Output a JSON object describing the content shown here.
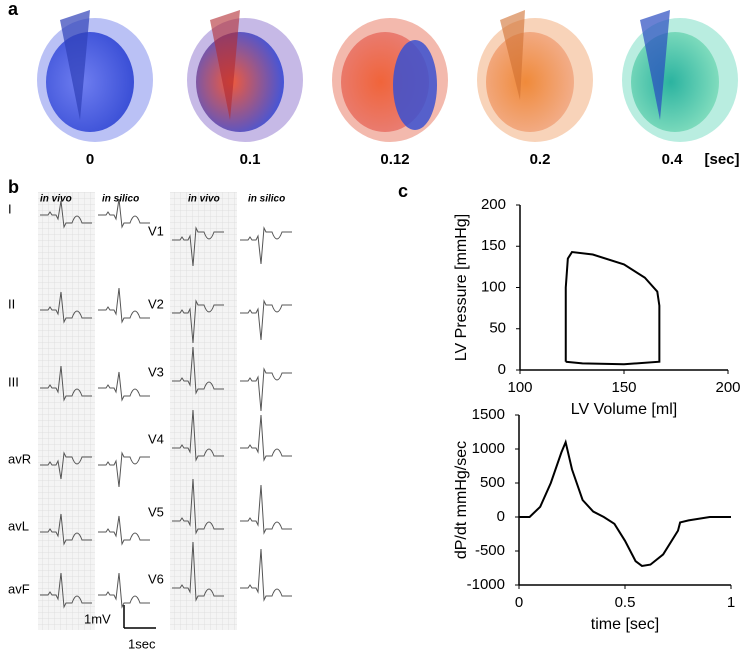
{
  "panel_a": {
    "label": "a",
    "times": [
      "0",
      "0.1",
      "0.12",
      "0.2",
      "0.4"
    ],
    "unit": "[sec]"
  },
  "panel_b": {
    "label": "b",
    "headers": [
      "in vivo",
      "in silico",
      "in vivo",
      "in silico"
    ],
    "limb_leads": [
      "I",
      "II",
      "III",
      "avR",
      "avL",
      "avF"
    ],
    "chest_leads": [
      "V1",
      "V2",
      "V3",
      "V4",
      "V5",
      "V6"
    ],
    "scale_voltage": "1mV",
    "scale_time": "1sec"
  },
  "panel_c": {
    "label": "c"
  },
  "chart_data": [
    {
      "type": "line",
      "xlabel": "LV Volume  [ml]",
      "ylabel": "LV Pressure [mmHg]",
      "color": "#000000",
      "x": [
        122,
        122,
        123,
        125,
        135,
        150,
        160,
        166,
        167,
        167,
        150,
        130,
        122
      ],
      "values": [
        10,
        100,
        135,
        143,
        140,
        128,
        112,
        95,
        78,
        10,
        7,
        8,
        10
      ],
      "xlim": [
        100,
        200
      ],
      "ylim": [
        0,
        200
      ],
      "xticks": [
        100,
        150,
        200
      ],
      "yticks": [
        0,
        50,
        100,
        150,
        200
      ]
    },
    {
      "type": "line",
      "xlabel": "time [sec]",
      "ylabel": "dP/dt mmHg/sec",
      "color": "#000000",
      "x": [
        0,
        0.05,
        0.1,
        0.15,
        0.2,
        0.22,
        0.25,
        0.3,
        0.35,
        0.4,
        0.45,
        0.5,
        0.55,
        0.58,
        0.62,
        0.68,
        0.75,
        0.76,
        0.8,
        0.9,
        1
      ],
      "values": [
        0,
        0,
        150,
        500,
        950,
        1100,
        700,
        250,
        80,
        0,
        -100,
        -350,
        -650,
        -720,
        -700,
        -550,
        -200,
        -80,
        -50,
        0,
        0
      ],
      "xlim": [
        0,
        1
      ],
      "ylim": [
        -1000,
        1500
      ],
      "xticks": [
        0,
        0.5,
        1
      ],
      "yticks": [
        -1000,
        -500,
        0,
        500,
        1000,
        1500
      ]
    }
  ]
}
